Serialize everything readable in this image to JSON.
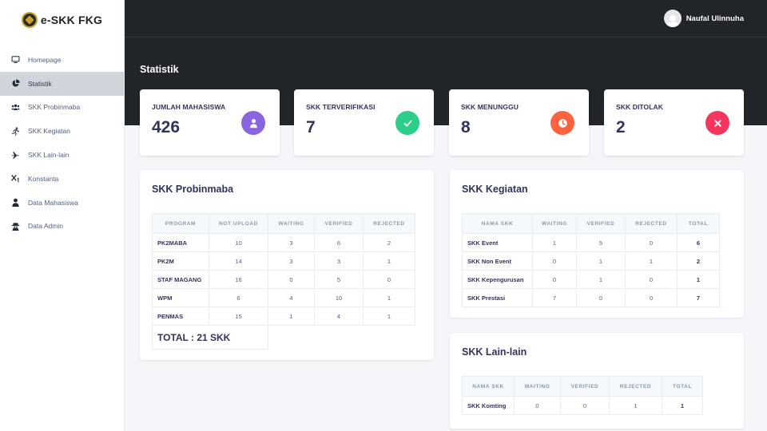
{
  "brand": {
    "name": "e-SKK FKG"
  },
  "sidebar": {
    "items": [
      {
        "label": "Homepage",
        "icon": "monitor-icon"
      },
      {
        "label": "Statistik",
        "icon": "pie-chart-icon",
        "active": true
      },
      {
        "label": "SKK Probinmaba",
        "icon": "users-icon"
      },
      {
        "label": "SKK Kegiatan",
        "icon": "running-icon"
      },
      {
        "label": "SKK Lain-lain",
        "icon": "plane-icon"
      },
      {
        "label": "Konstanta",
        "icon": "subscript-icon"
      },
      {
        "label": "Data Mahasiswa",
        "icon": "user-icon"
      },
      {
        "label": "Data Admin",
        "icon": "user-secret-icon"
      }
    ]
  },
  "header": {
    "user_name": "Naufal Ulinnuha",
    "page_title": "Statistik"
  },
  "stats": [
    {
      "label": "JUMLAH MAHASISWA",
      "value": "426",
      "color": "#8965e0",
      "icon": "user-icon"
    },
    {
      "label": "SKK TERVERIFIKASI",
      "value": "7",
      "color": "#2dce89",
      "icon": "check-icon"
    },
    {
      "label": "SKK MENUNGGU",
      "value": "8",
      "color": "#fb6340",
      "icon": "clock-icon"
    },
    {
      "label": "SKK DITOLAK",
      "value": "2",
      "color": "#f5365c",
      "icon": "close-icon"
    }
  ],
  "probinmaba": {
    "title": "SKK Probinmaba",
    "headers": [
      "PROGRAM",
      "NOT UPLOAD",
      "WAITING",
      "VERIFIED",
      "REJECTED"
    ],
    "rows": [
      [
        "PK2MABA",
        "10",
        "3",
        "6",
        "2"
      ],
      [
        "PK2M",
        "14",
        "3",
        "3",
        "1"
      ],
      [
        "STAF MAGANG",
        "16",
        "0",
        "5",
        "0"
      ],
      [
        "WPM",
        "6",
        "4",
        "10",
        "1"
      ],
      [
        "PENMAS",
        "15",
        "1",
        "4",
        "1"
      ]
    ],
    "total": "TOTAL : 21 SKK"
  },
  "kegiatan": {
    "title": "SKK Kegiatan",
    "headers": [
      "NAMA SKK",
      "WAITING",
      "VERIFIED",
      "REJECTED",
      "TOTAL"
    ],
    "rows": [
      [
        "SKK Event",
        "1",
        "5",
        "0",
        "6"
      ],
      [
        "SKK Non Event",
        "0",
        "1",
        "1",
        "2"
      ],
      [
        "SKK Kepengurusan",
        "0",
        "1",
        "0",
        "1"
      ],
      [
        "SKK Prestasi",
        "7",
        "0",
        "0",
        "7"
      ]
    ]
  },
  "lainlain": {
    "title": "SKK Lain-lain",
    "headers": [
      "NAMA SKK",
      "WAITING",
      "VERIFIED",
      "REJECTED",
      "TOTAL"
    ],
    "rows": [
      [
        "SKK Komting",
        "0",
        "0",
        "1",
        "1"
      ]
    ]
  }
}
